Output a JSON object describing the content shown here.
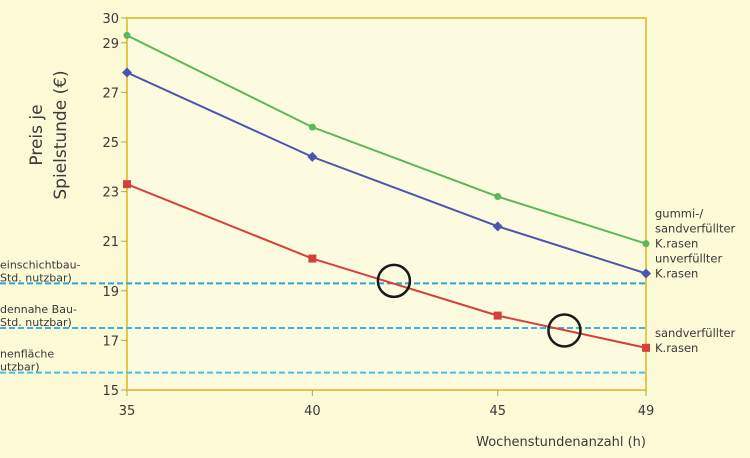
{
  "chart_data": {
    "type": "line",
    "xlabel": "Wochenstundenanzahl (h)",
    "ylabel_lines": [
      "Preis je",
      "Spielstunde (€)"
    ],
    "xlim": [
      35,
      49
    ],
    "ylim": [
      15,
      30
    ],
    "x_ticks": [
      35,
      40,
      45,
      49
    ],
    "y_ticks": [
      15,
      17,
      19,
      21,
      23,
      25,
      27,
      29,
      30
    ],
    "grid": false,
    "series": [
      {
        "name_lines": [
          "gummi-/",
          "sandverfüllter",
          "K.rasen"
        ],
        "color": "#5cb85a",
        "marker": "circle",
        "x": [
          35,
          40,
          45,
          49
        ],
        "y": [
          29.3,
          25.6,
          22.8,
          20.9
        ]
      },
      {
        "name_lines": [
          "unverfüllter",
          "K.rasen"
        ],
        "color": "#4a55b0",
        "marker": "diamond",
        "x": [
          35,
          40,
          45,
          49
        ],
        "y": [
          27.8,
          24.4,
          21.6,
          19.7
        ]
      },
      {
        "name_lines": [
          "sandverfüllter",
          "K.rasen"
        ],
        "color": "#d6403a",
        "marker": "square",
        "x": [
          35,
          40,
          45,
          49
        ],
        "y": [
          23.3,
          20.3,
          18.0,
          16.7
        ]
      }
    ],
    "reference_lines": [
      {
        "label_lines": [
          "einschichtbau-",
          "Std. nutzbar)"
        ],
        "y": 19.3,
        "color": "#2aa8d8"
      },
      {
        "label_lines": [
          "dennahe Bau-",
          "Std. nutzbar)"
        ],
        "y": 17.5,
        "color": "#38b6e0"
      },
      {
        "label_lines": [
          "nenfläche",
          "utzbar)"
        ],
        "y": 15.7,
        "color": "#46c0e6"
      }
    ],
    "highlights": [
      {
        "x": 42.2,
        "y": 19.4
      },
      {
        "x": 46.8,
        "y": 17.4
      }
    ]
  }
}
